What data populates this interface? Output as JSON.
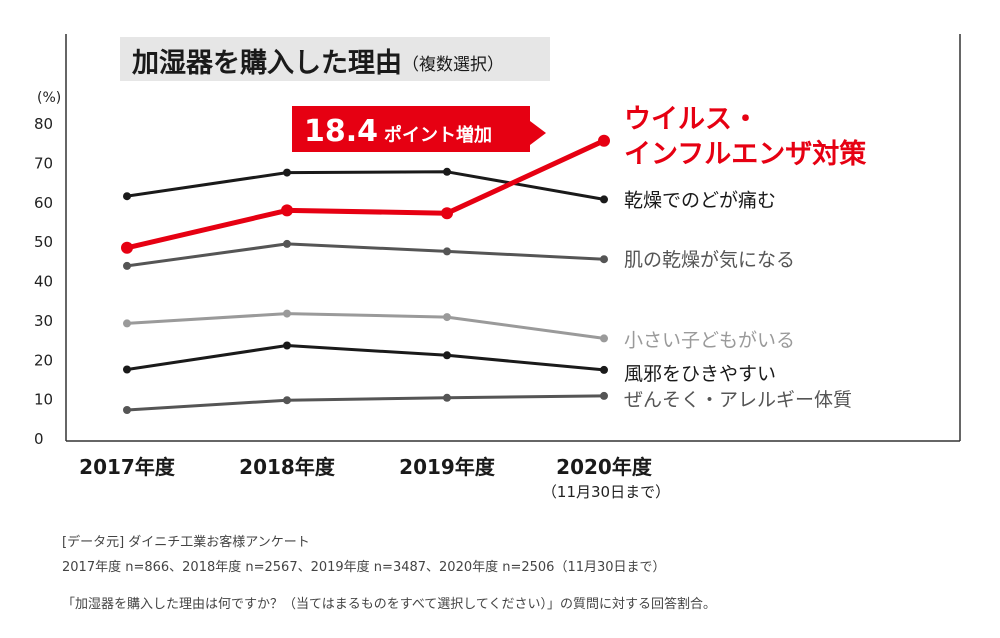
{
  "chart_data": {
    "type": "line",
    "title": "加湿器を購入した理由",
    "title_suffix": "（複数選択）",
    "y_unit_label": "(%)",
    "ylim": [
      0,
      80
    ],
    "yticks": [
      "0",
      "10",
      "20",
      "30",
      "40",
      "50",
      "60",
      "70",
      "80"
    ],
    "categories": [
      "2017年度",
      "2018年度",
      "2019年度",
      "2020年度"
    ],
    "category_sublabels": [
      "",
      "",
      "",
      "（11月30日まで）"
    ],
    "grid": false,
    "callout": {
      "value": "18.4",
      "text": "ポイント増加"
    },
    "series": [
      {
        "name": "乾燥でのどが痛む",
        "label_lines": [
          "乾燥でのどが痛む"
        ],
        "values": [
          61.4,
          67.4,
          67.6,
          60.6
        ],
        "color": "#1a1a1a",
        "highlight": false
      },
      {
        "name": "ウイルス・インフルエンザ対策",
        "label_lines": [
          "ウイルス・",
          "インフルエンザ対策"
        ],
        "values": [
          48.3,
          57.8,
          57.1,
          75.5
        ],
        "color": "#e60012",
        "highlight": true
      },
      {
        "name": "肌の乾燥が気になる",
        "label_lines": [
          "肌の乾燥が気になる"
        ],
        "values": [
          43.7,
          49.3,
          47.4,
          45.4
        ],
        "color": "#555555",
        "highlight": false
      },
      {
        "name": "小さい子どもがいる",
        "label_lines": [
          "小さい子どもがいる"
        ],
        "values": [
          29.1,
          31.6,
          30.7,
          25.3
        ],
        "color": "#9a9a9a",
        "highlight": false
      },
      {
        "name": "風邪をひきやすい",
        "label_lines": [
          "風邪をひきやすい"
        ],
        "values": [
          17.4,
          23.5,
          21.0,
          17.3
        ],
        "color": "#1a1a1a",
        "highlight": false
      },
      {
        "name": "ぜんそく・アレルギー体質",
        "label_lines": [
          "ぜんそく・アレルギー体質"
        ],
        "values": [
          7.1,
          9.6,
          10.2,
          10.7
        ],
        "color": "#555555",
        "highlight": false
      }
    ]
  },
  "notes": {
    "source": "[データ元] ダイニチ工業お客様アンケート",
    "samples": "2017年度 n=866、2018年度 n=2567、2019年度 n=3487、2020年度 n=2506（11月30日まで）",
    "question": "「加湿器を購入した理由は何ですか？（当てはまるものをすべて選択してください）」の質問に対する回答割合。"
  }
}
